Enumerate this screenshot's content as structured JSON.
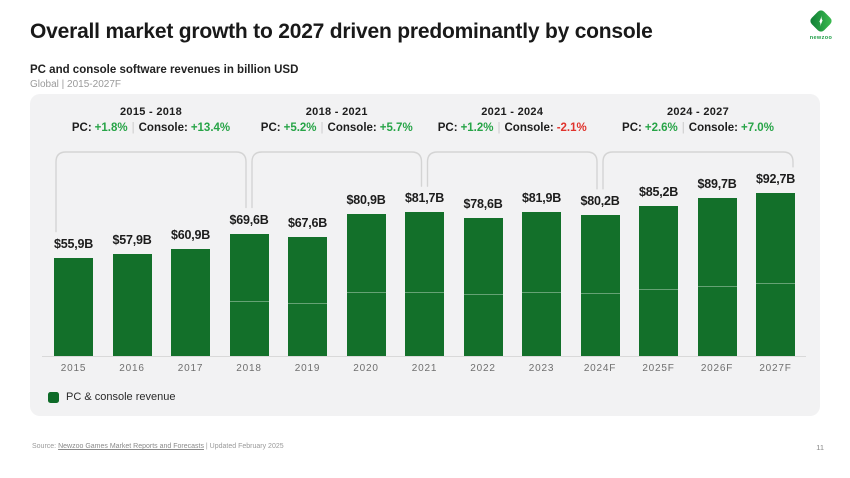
{
  "header": {
    "title": "Overall market growth to 2027 driven predominantly by console",
    "subtitle": "PC and console software revenues in billion USD",
    "meta": "Global | 2015-2027F",
    "logo_text": "newzoo"
  },
  "labels": {
    "pc": "PC:",
    "console": "Console:",
    "separator": "|"
  },
  "periods": [
    {
      "range": "2015 - 2018",
      "pc_change": "+1.8%",
      "console_change": "+13.4%",
      "pc_negative": false,
      "console_negative": false,
      "start_index": 0,
      "end_index": 3
    },
    {
      "range": "2018 - 2021",
      "pc_change": "+5.2%",
      "console_change": "+5.7%",
      "pc_negative": false,
      "console_negative": false,
      "start_index": 3,
      "end_index": 6
    },
    {
      "range": "2021 - 2024",
      "pc_change": "+1.2%",
      "console_change": "-2.1%",
      "pc_negative": false,
      "console_negative": true,
      "start_index": 6,
      "end_index": 9
    },
    {
      "range": "2024 - 2027",
      "pc_change": "+2.6%",
      "console_change": "+7.0%",
      "pc_negative": false,
      "console_negative": false,
      "start_index": 9,
      "end_index": 12
    }
  ],
  "chart_data": {
    "type": "bar",
    "title": "PC and console software revenues in billion USD",
    "subtitle": "Global | 2015-2027F",
    "unit": "billion USD",
    "categories": [
      "2015",
      "2016",
      "2017",
      "2018",
      "2019",
      "2020",
      "2021",
      "2022",
      "2023",
      "2024F",
      "2025F",
      "2026F",
      "2027F"
    ],
    "values": [
      55.9,
      57.9,
      60.9,
      69.6,
      67.6,
      80.9,
      81.7,
      78.6,
      81.9,
      80.2,
      85.2,
      89.7,
      92.7
    ],
    "value_labels": [
      "$55,9B",
      "$57,9B",
      "$60,9B",
      "$69,6B",
      "$67,6B",
      "$80,9B",
      "$81,7B",
      "$78,6B",
      "$81,9B",
      "$80,2B",
      "$85,2B",
      "$89,7B",
      "$92,7B"
    ],
    "ylim": [
      0,
      100
    ],
    "grid": false,
    "legend_position": "bottom-left",
    "legend": [
      {
        "label": "PC & console revenue",
        "color": "#0e6b28"
      }
    ],
    "annotations": [
      "2015 - 2018 PC: +1.8% | Console: +13.4%",
      "2018 - 2021 PC: +5.2% | Console: +5.7%",
      "2021 - 2024 PC: +1.2% | Console: -2.1%",
      "2024 - 2027 PC: +2.6% | Console: +7.0%"
    ]
  },
  "footer": {
    "source_prefix": "Source:",
    "source_link": "Newzoo Games Market Reports and Forecasts",
    "source_suffix": "| Updated February 2025",
    "page_number": "11"
  },
  "colors": {
    "bar": "#13702a",
    "positive": "#27a447",
    "negative": "#e0332c",
    "bracket": "#d4d4d4",
    "card_background": "#f2f2f3"
  }
}
